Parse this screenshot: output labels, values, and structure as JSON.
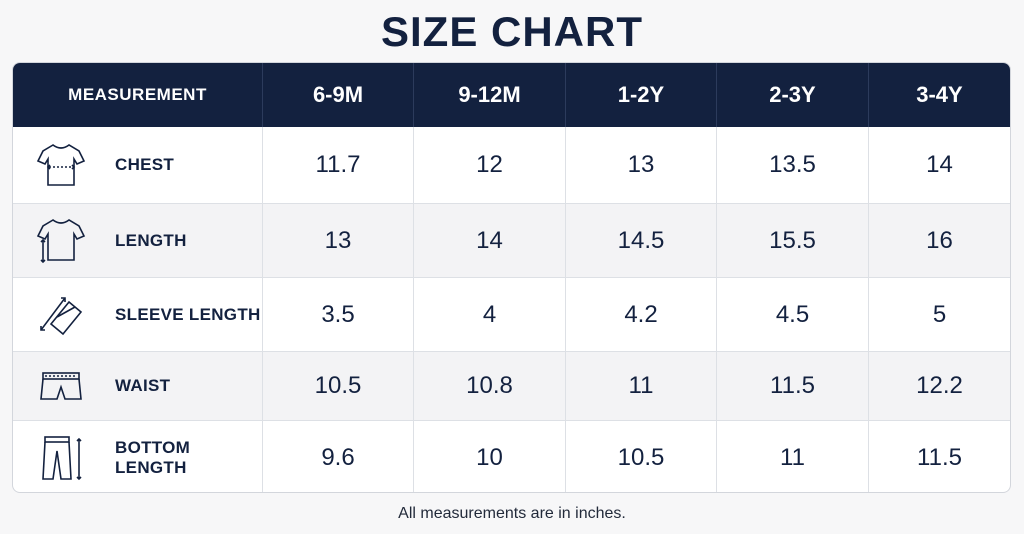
{
  "title": "SIZE CHART",
  "header": {
    "measurement_label": "MEASUREMENT",
    "sizes": [
      "6-9M",
      "9-12M",
      "1-2Y",
      "2-3Y",
      "3-4Y"
    ]
  },
  "rows": [
    {
      "label": "CHEST",
      "icon": "tshirt-chest-icon",
      "values": [
        "11.7",
        "12",
        "13",
        "13.5",
        "14"
      ]
    },
    {
      "label": "LENGTH",
      "icon": "tshirt-length-icon",
      "values": [
        "13",
        "14",
        "14.5",
        "15.5",
        "16"
      ]
    },
    {
      "label": "SLEEVE LENGTH",
      "icon": "sleeve-length-icon",
      "values": [
        "3.5",
        "4",
        "4.2",
        "4.5",
        "5"
      ]
    },
    {
      "label": "WAIST",
      "icon": "shorts-waist-icon",
      "values": [
        "10.5",
        "10.8",
        "11",
        "11.5",
        "12.2"
      ]
    },
    {
      "label": "BOTTOM LENGTH",
      "icon": "pants-length-icon",
      "values": [
        "9.6",
        "10",
        "10.5",
        "11",
        "11.5"
      ]
    }
  ],
  "footnote": "All measurements are in inches.",
  "colors": {
    "header_bg": "#13213f",
    "text": "#13213f",
    "alt_row": "#f3f3f5"
  }
}
